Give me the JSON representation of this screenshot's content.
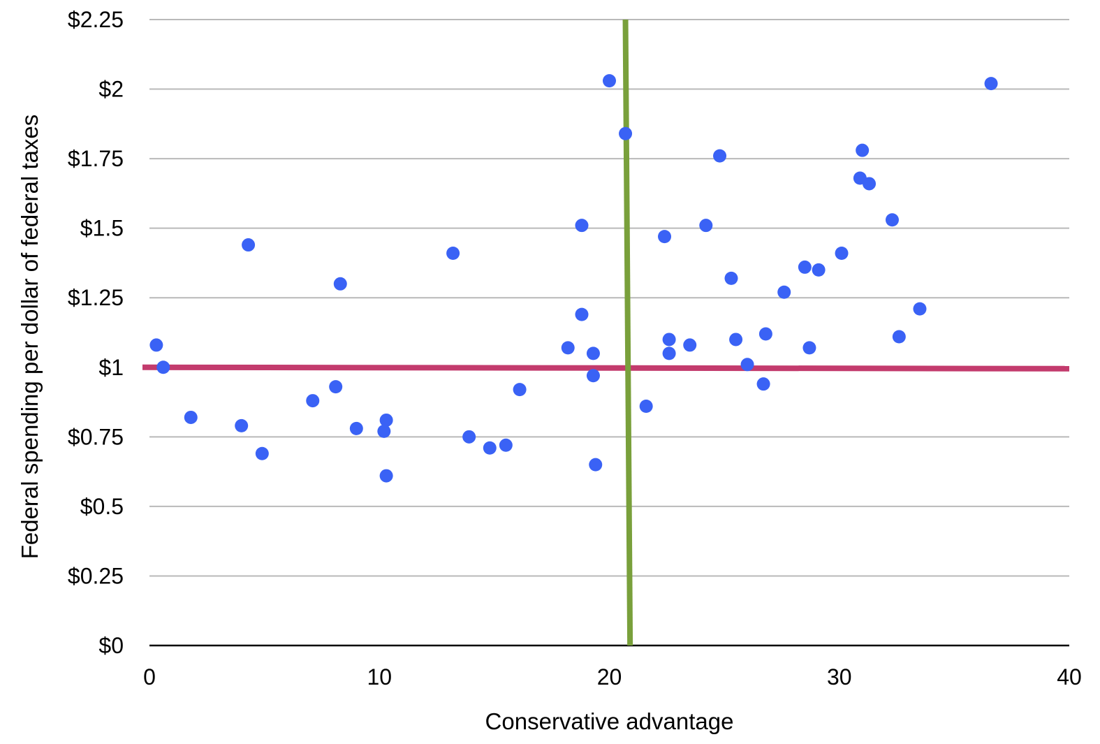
{
  "chart_data": {
    "type": "scatter",
    "title": "",
    "xlabel": "Conservative advantage",
    "ylabel": "Federal spending per dollar of federal taxes",
    "xlim": [
      0,
      40
    ],
    "ylim": [
      0,
      2.25
    ],
    "x_ticks": [
      0,
      10,
      20,
      30,
      40
    ],
    "x_tick_labels": [
      "0",
      "10",
      "20",
      "30",
      "40"
    ],
    "y_ticks": [
      0,
      0.25,
      0.5,
      0.75,
      1,
      1.25,
      1.5,
      1.75,
      2,
      2.25
    ],
    "y_tick_labels": [
      "$0",
      "$0.25",
      "$0.5",
      "$0.75",
      "$1",
      "$1.25",
      "$1.5",
      "$1.75",
      "$2",
      "$2.25"
    ],
    "grid": true,
    "legend": "none",
    "point_color": "#3a62f5",
    "series": [
      {
        "x": [
          0.3,
          0.6,
          1.8,
          4.0,
          4.3,
          4.9,
          7.1,
          8.1,
          8.3,
          9.0,
          10.2,
          10.3,
          10.3,
          13.2,
          13.9,
          14.8,
          15.5,
          16.1,
          18.2,
          18.8,
          18.8,
          19.3,
          19.3,
          19.4,
          20.0,
          20.7,
          21.6,
          22.4,
          22.6,
          22.6,
          23.5,
          24.2,
          24.8,
          25.3,
          25.5,
          26.0,
          26.7,
          26.8,
          27.6,
          28.5,
          28.7,
          29.1,
          30.1,
          30.9,
          31.0,
          31.3,
          32.3,
          32.6,
          33.5,
          36.6
        ],
        "y": [
          1.08,
          1.0,
          0.82,
          0.79,
          1.44,
          0.69,
          0.88,
          0.93,
          1.3,
          0.78,
          0.77,
          0.81,
          0.61,
          1.41,
          0.75,
          0.71,
          0.72,
          0.92,
          1.07,
          1.51,
          1.19,
          1.05,
          0.97,
          0.65,
          2.03,
          1.84,
          0.86,
          1.47,
          1.1,
          1.05,
          1.08,
          1.51,
          1.76,
          1.32,
          1.1,
          1.01,
          0.94,
          1.12,
          1.27,
          1.36,
          1.07,
          1.35,
          1.41,
          1.68,
          1.78,
          1.66,
          1.53,
          1.11,
          1.21,
          2.02
        ]
      }
    ],
    "reference_lines": [
      {
        "orientation": "horizontal",
        "color": "#c33b6d",
        "from": {
          "x": 0,
          "y": 1.0
        },
        "to": {
          "x": 40,
          "y": 0.995
        }
      },
      {
        "orientation": "vertical",
        "color": "#79a03b",
        "from": {
          "x": 20.7,
          "y": 2.25
        },
        "to": {
          "x": 20.9,
          "y": 0
        }
      }
    ]
  }
}
